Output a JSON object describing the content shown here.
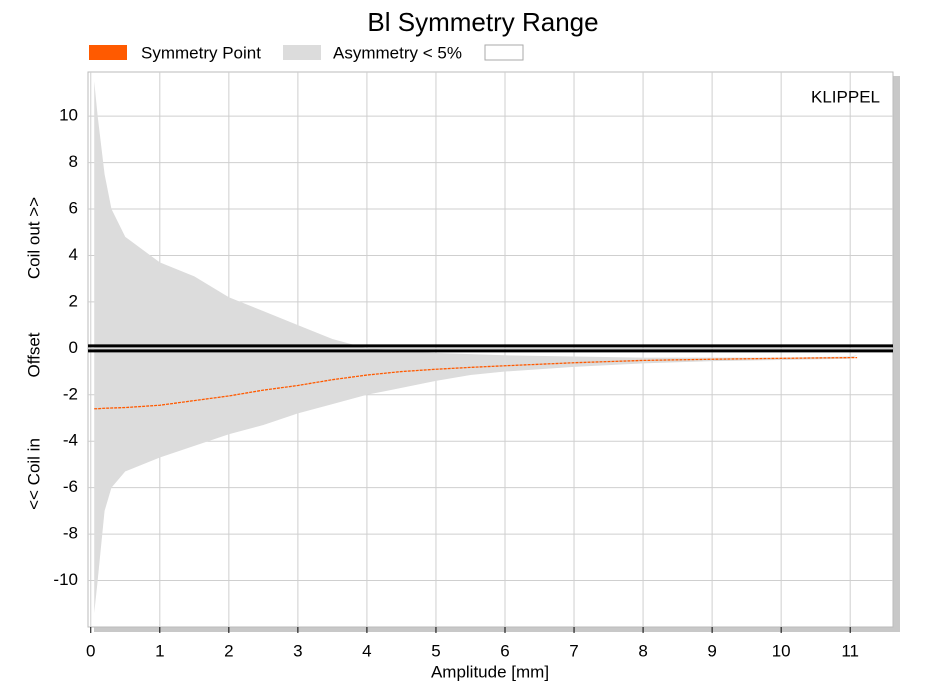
{
  "chart_data": {
    "type": "band",
    "title": "Bl Symmetry Range",
    "xlabel": "Amplitude [mm]",
    "ylabel_parts": [
      "Coil out >>",
      "Offset",
      "<< Coil in"
    ],
    "annotation": "KLIPPEL",
    "xlim": [
      -0.04,
      11.62
    ],
    "ylim": [
      -12,
      11.9
    ],
    "xticks": [
      0,
      1,
      2,
      3,
      4,
      5,
      6,
      7,
      8,
      9,
      10,
      11
    ],
    "yticks": [
      10,
      8,
      6,
      4,
      2,
      0,
      -2,
      -4,
      -6,
      -8,
      -10
    ],
    "grid": true,
    "zero_line": true,
    "x": [
      0.05,
      0.1,
      0.2,
      0.3,
      0.5,
      1,
      1.5,
      2,
      2.5,
      3,
      3.5,
      4,
      4.5,
      5,
      5.5,
      6,
      7,
      8,
      9,
      10,
      11,
      11.1
    ],
    "series": [
      {
        "name": "Asymmetry < 5%",
        "color": "#dcdcdc",
        "upper": [
          11.5,
          10,
          7.5,
          6,
          4.8,
          3.7,
          3.1,
          2.2,
          1.6,
          1.0,
          0.4,
          0,
          -0.1,
          -0.2,
          -0.25,
          -0.3,
          -0.35,
          -0.4,
          -0.4,
          -0.4,
          -0.35,
          -0.3
        ],
        "lower": [
          -11.4,
          -10,
          -7,
          -6,
          -5.3,
          -4.7,
          -4.2,
          -3.7,
          -3.3,
          -2.8,
          -2.4,
          -2.0,
          -1.7,
          -1.4,
          -1.15,
          -1.0,
          -0.8,
          -0.65,
          -0.55,
          -0.5,
          -0.45,
          -0.3
        ]
      },
      {
        "name": "Symmetry Point",
        "color": "#ff5a00",
        "values": [
          -2.6,
          -2.6,
          -2.58,
          -2.57,
          -2.55,
          -2.45,
          -2.25,
          -2.05,
          -1.8,
          -1.6,
          -1.35,
          -1.15,
          -1.0,
          -0.9,
          -0.82,
          -0.75,
          -0.62,
          -0.52,
          -0.47,
          -0.43,
          -0.4,
          -0.4
        ]
      }
    ]
  }
}
